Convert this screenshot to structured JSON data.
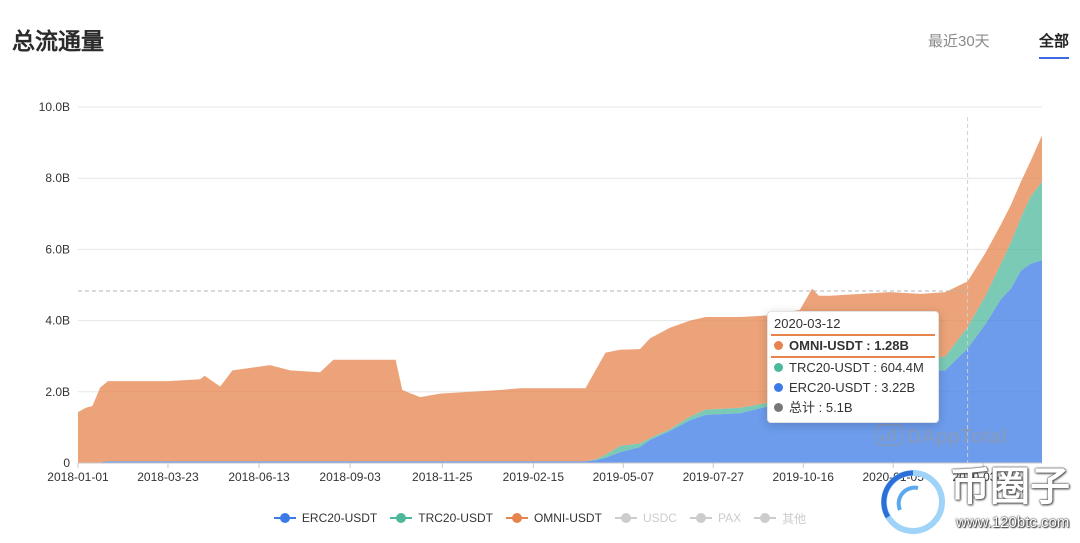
{
  "header": {
    "title": "总流通量"
  },
  "tabs": [
    {
      "label": "最近30天",
      "active": false
    },
    {
      "label": "全部",
      "active": true
    }
  ],
  "accent_color": "#3d6be6",
  "chart_data": {
    "type": "area",
    "stacked": true,
    "grid": true,
    "legend_position": "bottom",
    "x_range": [
      "2018-01-01",
      "2020-05-18"
    ],
    "y_range": [
      0,
      10
    ],
    "x_ticks": [
      "2018-01-01",
      "2018-03-23",
      "2018-06-13",
      "2018-09-03",
      "2018-11-25",
      "2019-02-15",
      "2019-05-07",
      "2019-07-27",
      "2019-10-16",
      "2020-01-05",
      "2020-03-26"
    ],
    "y_ticks": [
      {
        "value": 0,
        "label": "0"
      },
      {
        "value": 2,
        "label": "2.0B"
      },
      {
        "value": 4,
        "label": "4.0B"
      },
      {
        "value": 6,
        "label": "6.0B"
      },
      {
        "value": 8,
        "label": "8.0B"
      },
      {
        "value": 10,
        "label": "10.0B"
      }
    ],
    "x": [
      "2018-01-01",
      "2018-01-08",
      "2018-01-14",
      "2018-01-21",
      "2018-01-28",
      "2018-03-23",
      "2018-04-21",
      "2018-04-25",
      "2018-05-09",
      "2018-05-20",
      "2018-06-23",
      "2018-07-11",
      "2018-08-07",
      "2018-08-19",
      "2018-10-14",
      "2018-10-20",
      "2018-11-05",
      "2018-11-23",
      "2019-01-16",
      "2019-02-03",
      "2019-04-03",
      "2019-04-12",
      "2019-04-21",
      "2019-05-04",
      "2019-05-22",
      "2019-05-31",
      "2019-06-18",
      "2019-07-06",
      "2019-07-20",
      "2019-08-20",
      "2019-09-16",
      "2019-10-13",
      "2019-10-24",
      "2019-10-30",
      "2019-11-09",
      "2019-12-07",
      "2020-01-02",
      "2020-01-30",
      "2020-02-21",
      "2020-03-12",
      "2020-03-28",
      "2020-04-11",
      "2020-04-20",
      "2020-04-29",
      "2020-05-08",
      "2020-05-18"
    ],
    "series": [
      {
        "name": "ERC20-USDT",
        "color": "#3c7be6",
        "values": [
          0,
          0,
          0,
          0.02,
          0.05,
          0.05,
          0.05,
          0.05,
          0.05,
          0.05,
          0.05,
          0.05,
          0.05,
          0.05,
          0.05,
          0.05,
          0.05,
          0.05,
          0.05,
          0.05,
          0.05,
          0.08,
          0.15,
          0.3,
          0.45,
          0.65,
          0.9,
          1.2,
          1.35,
          1.4,
          1.6,
          2.0,
          2.05,
          2.1,
          2.2,
          2.3,
          2.5,
          2.6,
          2.6,
          3.22,
          3.9,
          4.6,
          4.9,
          5.4,
          5.6,
          5.7
        ]
      },
      {
        "name": "TRC20-USDT",
        "color": "#4db89c",
        "values": [
          0,
          0,
          0,
          0,
          0,
          0,
          0,
          0,
          0,
          0,
          0,
          0,
          0,
          0,
          0,
          0,
          0,
          0,
          0,
          0,
          0,
          0.02,
          0.08,
          0.18,
          0.1,
          0.05,
          0.05,
          0.1,
          0.15,
          0.15,
          0.1,
          0.1,
          0.1,
          0.1,
          0.1,
          0.15,
          0.2,
          0.25,
          0.4,
          0.6,
          0.8,
          1.0,
          1.3,
          1.5,
          1.9,
          2.2
        ]
      },
      {
        "name": "OMNI-USDT",
        "color": "#e5844c",
        "values": [
          1.43,
          1.55,
          1.6,
          2.1,
          2.25,
          2.25,
          2.3,
          2.4,
          2.1,
          2.55,
          2.7,
          2.55,
          2.5,
          2.85,
          2.85,
          2.0,
          1.8,
          1.9,
          2.0,
          2.05,
          2.05,
          2.5,
          2.87,
          2.7,
          2.65,
          2.8,
          2.85,
          2.7,
          2.6,
          2.55,
          2.45,
          2.2,
          2.75,
          2.5,
          2.4,
          2.3,
          2.1,
          1.9,
          1.8,
          1.28,
          1.2,
          1.1,
          1.05,
          1.0,
          1.0,
          1.3
        ]
      }
    ],
    "legend_inactive": [
      "USDC",
      "PAX",
      "其他"
    ],
    "legend_inactive_color": "#cccccc"
  },
  "tooltip": {
    "date": "2020-03-12",
    "rows": [
      {
        "text": "OMNI-USDT : 1.28B",
        "color": "#e5844c",
        "highlight": true
      },
      {
        "text": "TRC20-USDT : 604.4M",
        "color": "#4db89c",
        "highlight": false
      },
      {
        "text": "ERC20-USDT : 3.22B",
        "color": "#3c7be6",
        "highlight": false
      },
      {
        "text": "总计 : 5.1B",
        "color": "#777777",
        "highlight": false
      }
    ]
  },
  "watermarks": {
    "dapptotal": "DAppTotal",
    "site_name": "币圈子",
    "site_url": "www.120btc.com"
  }
}
